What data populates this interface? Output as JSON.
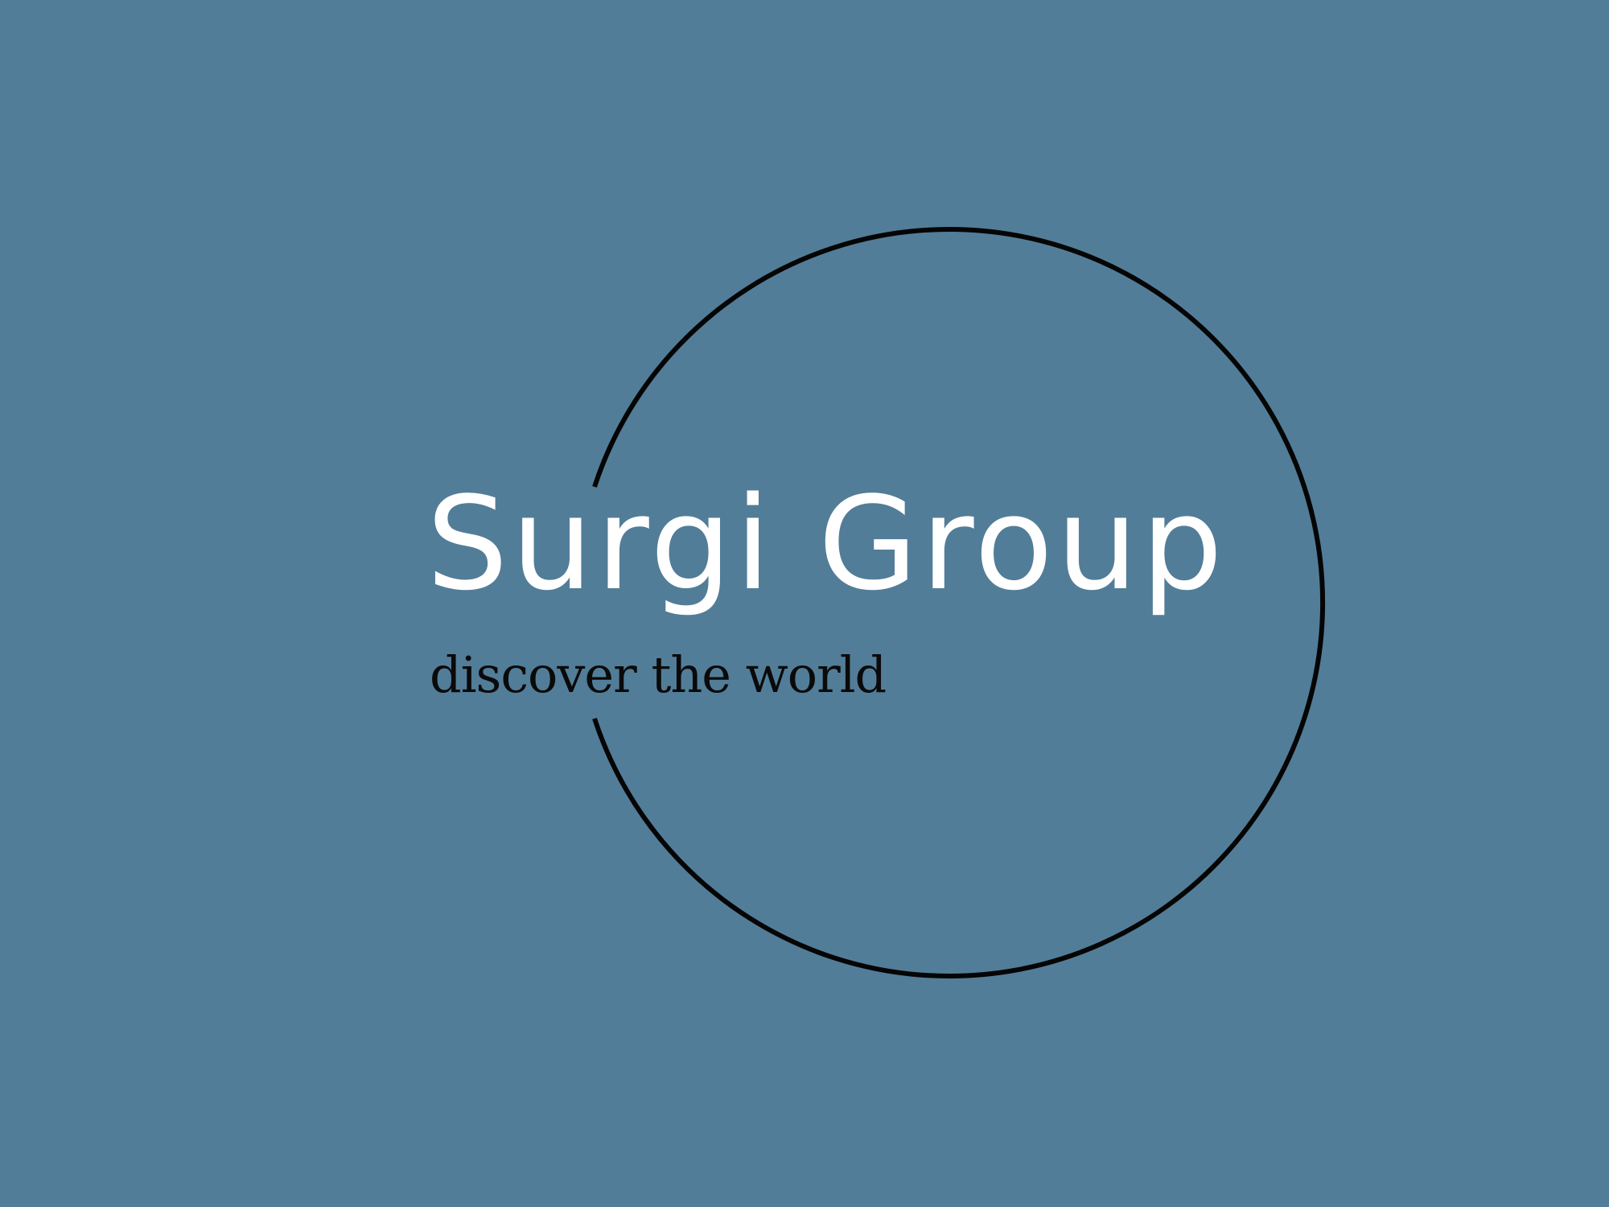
{
  "background_color": "#527d98",
  "logo": {
    "name": "Surgi Group",
    "tagline": "discover the world",
    "name_color": "#ffffff",
    "tagline_color": "#0a0a0a",
    "ring_color": "#050505"
  }
}
